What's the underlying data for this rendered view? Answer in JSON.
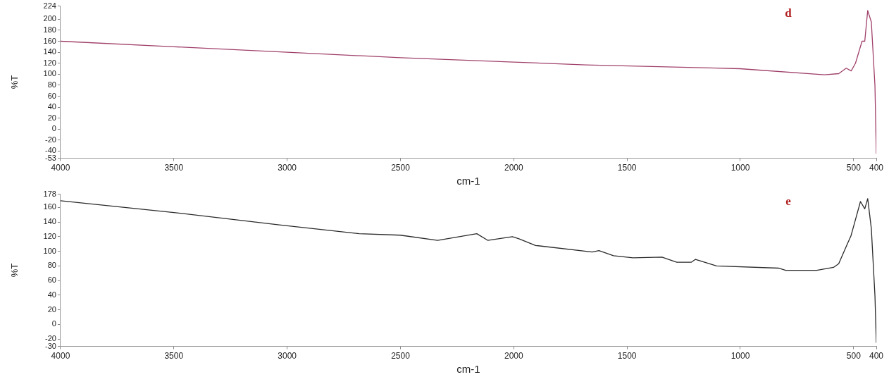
{
  "chart_data": [
    {
      "type": "line",
      "xlabel": "cm-1",
      "ylabel": "%T",
      "annotations": [
        "d"
      ],
      "grid": false,
      "legend": false,
      "marker": "none",
      "xlim": [
        4000,
        400
      ],
      "xticks": [
        4000,
        3500,
        3000,
        2500,
        2000,
        1500,
        1000,
        500,
        400
      ],
      "ylim": [
        -53,
        224
      ],
      "yticks": [
        -53,
        -40,
        -20,
        0,
        20,
        40,
        60,
        80,
        100,
        120,
        140,
        160,
        180,
        200,
        224
      ],
      "series": [
        {
          "color": "#a0406a",
          "x": [
            4000,
            3500,
            3000,
            2500,
            2000,
            1681,
            1002,
            629,
            566,
            533,
            511,
            492,
            463,
            451,
            438,
            422,
            406,
            400
          ],
          "values": [
            160,
            150,
            140,
            130,
            122,
            117,
            110,
            99,
            101,
            111,
            106,
            120,
            160,
            160,
            216,
            195,
            79,
            -45
          ]
        }
      ]
    },
    {
      "type": "line",
      "xlabel": "cm-1",
      "ylabel": "%T",
      "annotations": [
        "e"
      ],
      "grid": false,
      "legend": false,
      "marker": "none",
      "xlim": [
        4000,
        400
      ],
      "xticks": [
        4000,
        3500,
        3000,
        2500,
        2000,
        1500,
        1000,
        500,
        400
      ],
      "ylim": [
        -30,
        178
      ],
      "yticks": [
        -30,
        -20,
        0,
        20,
        40,
        60,
        80,
        100,
        120,
        140,
        160,
        178
      ],
      "series": [
        {
          "color": "#2a2a2a",
          "x": [
            4000,
            3500,
            3035,
            2682,
            2500,
            2336,
            2163,
            2115,
            2006,
            1977,
            1904,
            1654,
            1624,
            1560,
            1474,
            1346,
            1281,
            1217,
            1198,
            1105,
            832,
            800,
            663,
            589,
            566,
            528,
            512,
            495,
            470,
            451,
            438,
            422,
            406,
            400
          ],
          "values": [
            169,
            153,
            136,
            124,
            122,
            115,
            124,
            115,
            120,
            117,
            108,
            99,
            101,
            94,
            91,
            92,
            85,
            85,
            89,
            80,
            77,
            74,
            74,
            78,
            83,
            110,
            121,
            140,
            168,
            158,
            172,
            131,
            39,
            -25
          ]
        }
      ]
    }
  ]
}
